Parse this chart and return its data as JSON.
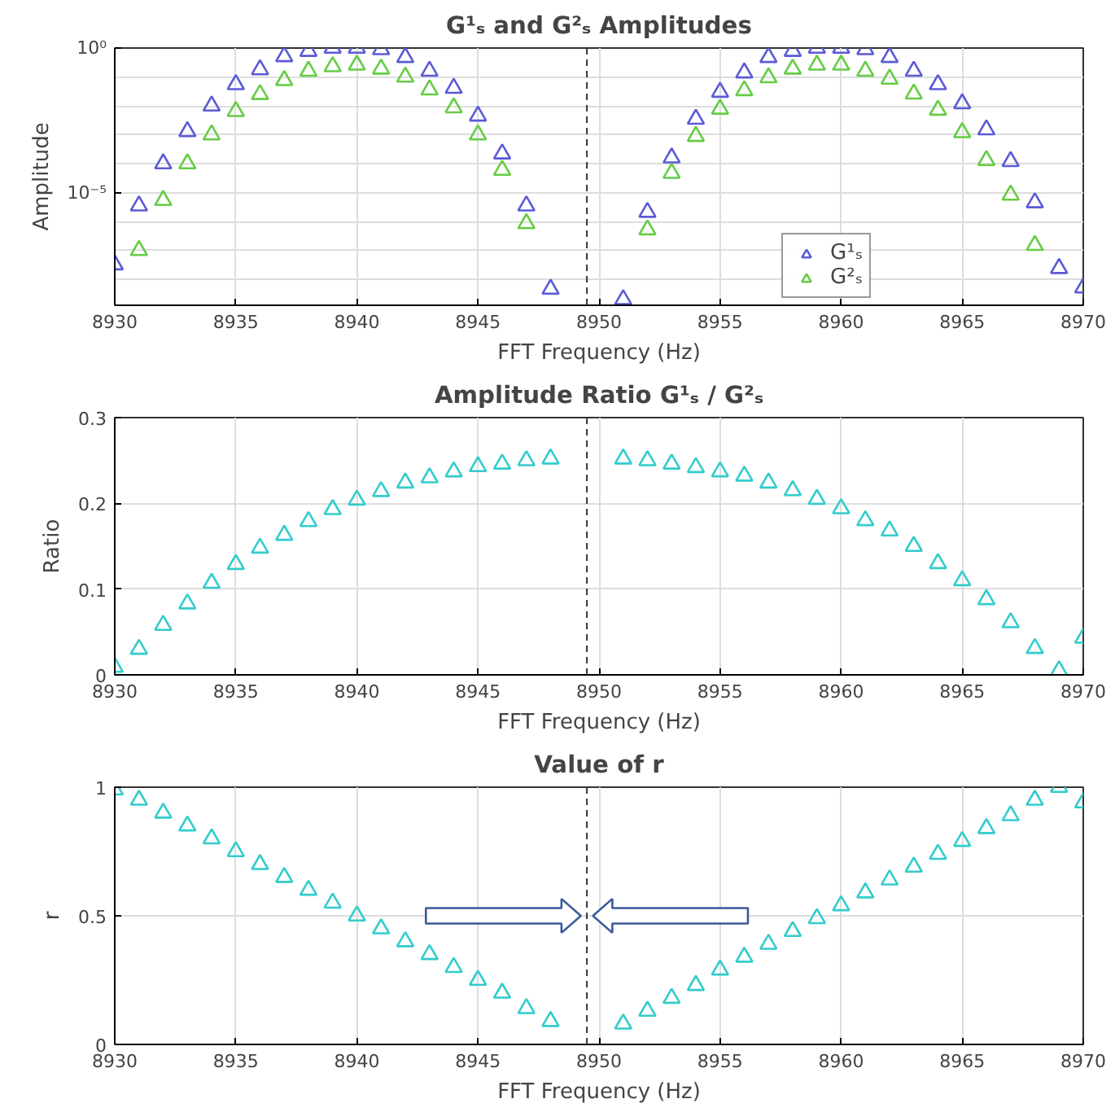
{
  "chart_data": [
    {
      "type": "scatter",
      "title": "G¹ₛ and G²ₛ Amplitudes",
      "xlabel": "FFT Frequency (Hz)",
      "ylabel": "Amplitude",
      "log": "y",
      "marker": "triangle",
      "grid": true,
      "legend": "bottom right",
      "x": [
        8930,
        8931,
        8932,
        8933,
        8934,
        8935,
        8936,
        8937,
        8938,
        8939,
        8940,
        8941,
        8942,
        8943,
        8944,
        8945,
        8946,
        8947,
        8948,
        8951,
        8952,
        8953,
        8954,
        8955,
        8956,
        8957,
        8958,
        8959,
        8960,
        8961,
        8962,
        8963,
        8964,
        8965,
        8966,
        8967,
        8968,
        8969,
        8970
      ],
      "xlim": [
        8930,
        8970
      ],
      "xticks": [
        8930,
        8935,
        8940,
        8945,
        8950,
        8955,
        8960,
        8965,
        8970
      ],
      "ylim": [
        1.26e-09,
        1
      ],
      "yticks": [
        {
          "value": 1,
          "label": "10⁰"
        },
        {
          "value": 1e-05,
          "label": "10⁻⁵"
        }
      ],
      "ref_lines": [
        {
          "axis": "x",
          "value": 8949.5,
          "label": null,
          "color": "#333333",
          "line_style": "dashed"
        }
      ],
      "series": [
        {
          "name": "G¹ₛ",
          "color": "#5b5bd6",
          "values": [
            3.2e-08,
            3.5e-06,
            0.0001,
            0.0013,
            0.01,
            0.055,
            0.18,
            0.51,
            0.78,
            1,
            1,
            0.89,
            0.48,
            0.16,
            0.041,
            0.0045,
            0.00022,
            3.5e-06,
            4.6e-09,
            2e-09,
            2.1e-06,
            0.00016,
            0.0035,
            0.03,
            0.14,
            0.48,
            0.78,
            1,
            1,
            0.89,
            0.48,
            0.16,
            0.055,
            0.012,
            0.0015,
            0.00012,
            4.5e-06,
            2.4e-08,
            5.1e-09
          ]
        },
        {
          "name": "G²ₛ",
          "color": "#66cc44",
          "values": [
            null,
            1e-07,
            5.4e-06,
            0.0001,
            0.001,
            0.0065,
            0.025,
            0.076,
            0.16,
            0.23,
            0.26,
            0.19,
            0.1,
            0.036,
            0.0087,
            0.001,
            6e-05,
            8.5e-07,
            null,
            null,
            5.2e-07,
            4.7e-05,
            0.00089,
            0.0078,
            0.034,
            0.095,
            0.19,
            0.26,
            0.26,
            0.16,
            0.085,
            0.026,
            0.0072,
            0.0012,
            0.00013,
            8.3e-06,
            1.5e-07,
            null,
            null
          ]
        }
      ]
    },
    {
      "type": "scatter",
      "title": "Amplitude Ratio G¹ₛ / G²ₛ",
      "xlabel": "FFT Frequency (Hz)",
      "ylabel": "Ratio",
      "marker": "triangle",
      "grid": true,
      "x": [
        8930,
        8931,
        8932,
        8933,
        8934,
        8935,
        8936,
        8937,
        8938,
        8939,
        8940,
        8941,
        8942,
        8943,
        8944,
        8945,
        8946,
        8947,
        8948,
        8951,
        8952,
        8953,
        8954,
        8955,
        8956,
        8957,
        8958,
        8959,
        8960,
        8961,
        8962,
        8963,
        8964,
        8965,
        8966,
        8967,
        8968,
        8969,
        8970
      ],
      "xlim": [
        8930,
        8970
      ],
      "xticks": [
        8930,
        8935,
        8940,
        8945,
        8950,
        8955,
        8960,
        8965,
        8970
      ],
      "ylim": [
        0,
        0.3
      ],
      "yticks": [
        0,
        0.1,
        0.2,
        0.3
      ],
      "ref_lines": [
        {
          "axis": "x",
          "value": 8949.5,
          "label": null,
          "color": "#333333",
          "line_style": "dashed"
        }
      ],
      "series": [
        {
          "color": "#33cccc",
          "values": [
            0.009,
            0.03,
            0.058,
            0.083,
            0.107,
            0.129,
            0.148,
            0.163,
            0.179,
            0.193,
            0.204,
            0.214,
            0.224,
            0.23,
            0.237,
            0.243,
            0.246,
            0.25,
            0.252,
            0.252,
            0.25,
            0.246,
            0.242,
            0.237,
            0.232,
            0.224,
            0.215,
            0.205,
            0.194,
            0.18,
            0.168,
            0.15,
            0.13,
            0.11,
            0.088,
            0.061,
            0.031,
            0.005,
            0.043
          ]
        }
      ]
    },
    {
      "type": "scatter",
      "title": "Value of r",
      "xlabel": "FFT Frequency (Hz)",
      "ylabel": "r",
      "marker": "triangle",
      "grid": true,
      "x": [
        8930,
        8931,
        8932,
        8933,
        8934,
        8935,
        8936,
        8937,
        8938,
        8939,
        8940,
        8941,
        8942,
        8943,
        8944,
        8945,
        8946,
        8947,
        8948,
        8951,
        8952,
        8953,
        8954,
        8955,
        8956,
        8957,
        8958,
        8959,
        8960,
        8961,
        8962,
        8963,
        8964,
        8965,
        8966,
        8967,
        8968,
        8969,
        8970
      ],
      "xlim": [
        8930,
        8970
      ],
      "xticks": [
        8930,
        8935,
        8940,
        8945,
        8950,
        8955,
        8960,
        8965,
        8970
      ],
      "ylim": [
        0,
        1
      ],
      "yticks": [
        0,
        0.5,
        1
      ],
      "ref_lines": [
        {
          "axis": "x",
          "value": 8949.5,
          "label": null,
          "color": "#333333",
          "line_style": "dashed"
        }
      ],
      "series": [
        {
          "color": "#33cccc",
          "values": [
            0.99,
            0.95,
            0.9,
            0.85,
            0.8,
            0.75,
            0.7,
            0.65,
            0.6,
            0.55,
            0.5,
            0.45,
            0.4,
            0.35,
            0.3,
            0.25,
            0.2,
            0.14,
            0.09,
            0.08,
            0.13,
            0.18,
            0.23,
            0.29,
            0.34,
            0.39,
            0.44,
            0.49,
            0.54,
            0.59,
            0.64,
            0.69,
            0.74,
            0.79,
            0.84,
            0.89,
            0.95,
            1.0,
            0.94
          ]
        }
      ]
    }
  ]
}
